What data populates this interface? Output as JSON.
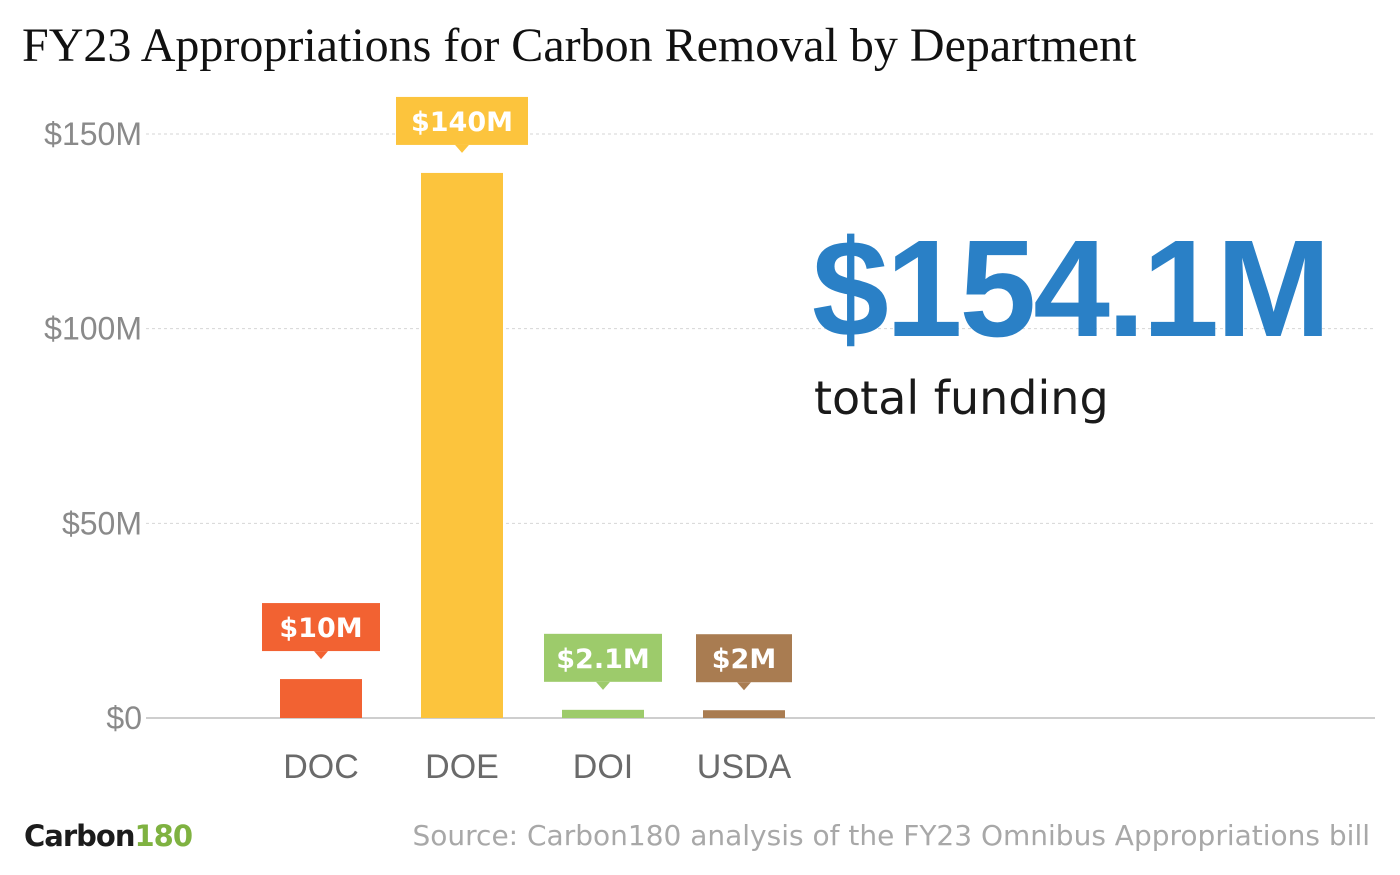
{
  "chart_data": {
    "type": "bar",
    "title": "FY23 Appropriations for Carbon Removal by Department",
    "xlabel": "",
    "ylabel": "",
    "categories": [
      "DOC",
      "DOE",
      "DOI",
      "USDA"
    ],
    "values": [
      10,
      140,
      2.1,
      2
    ],
    "data_labels": [
      "$10M",
      "$140M",
      "$2.1M",
      "$2M"
    ],
    "ylim": [
      0,
      150
    ],
    "y_ticks": [
      0,
      50,
      100,
      150
    ],
    "y_tick_labels": [
      "$0",
      "$50M",
      "$100M",
      "$150M"
    ],
    "grid": "horizontal dotted",
    "colors": [
      "#f26232",
      "#fcc43d",
      "#9dcb6b",
      "#a97c51"
    ],
    "annotations": [
      {
        "text": "$154.1M",
        "color": "#2a80c6"
      },
      {
        "text": "total funding",
        "color": "#1a1a1a"
      }
    ]
  },
  "total": {
    "amount": "$154.1M",
    "caption": "total funding"
  },
  "brand": {
    "logo_word": "Carbon",
    "logo_number": "180",
    "logo_number_color": "#7fb241"
  },
  "footer": {
    "source": "Source: Carbon180 analysis of the FY23 Omnibus Appropriations bill"
  }
}
